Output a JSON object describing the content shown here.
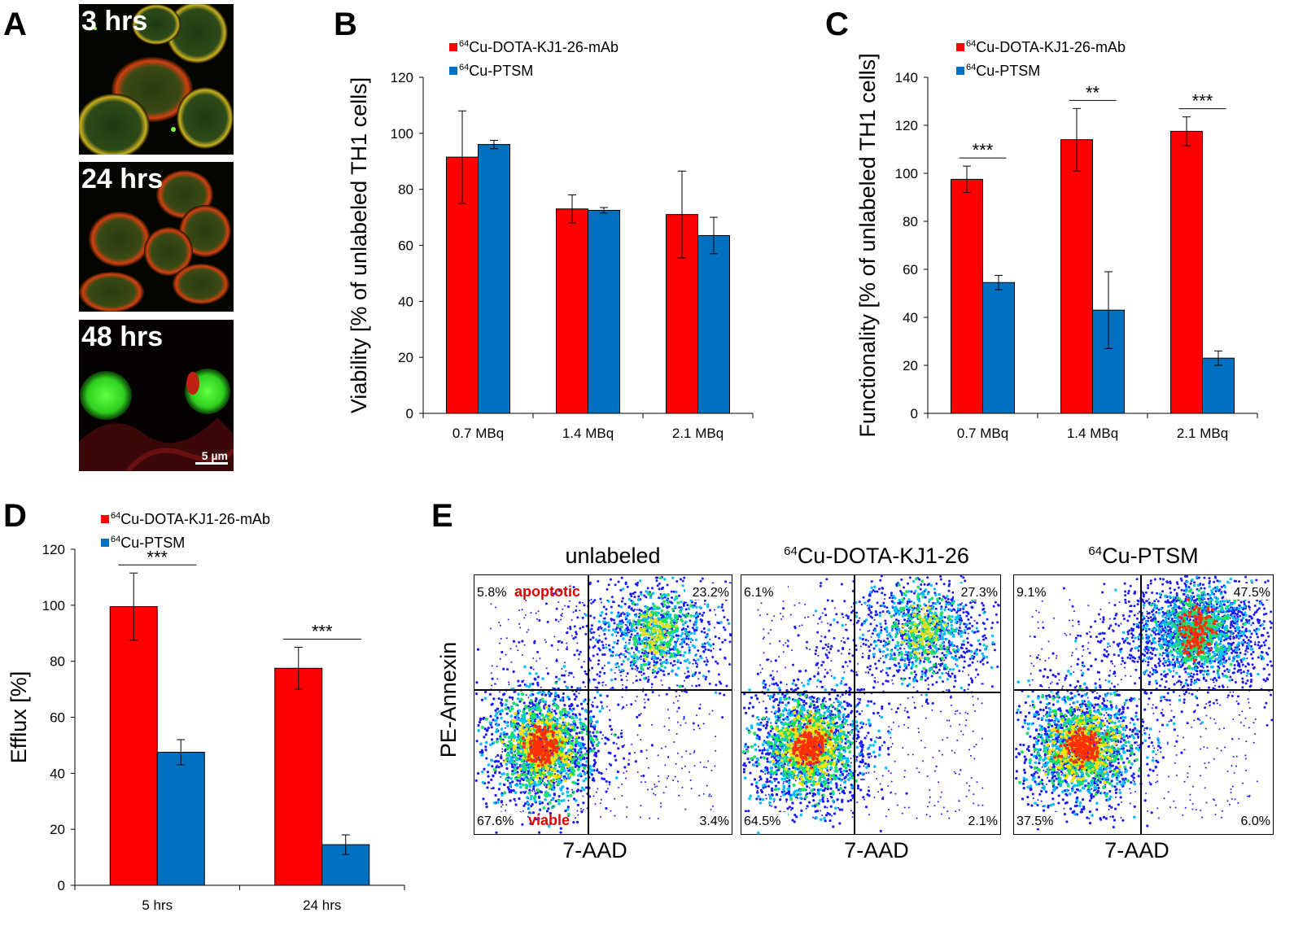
{
  "panels": {
    "A": "A",
    "B": "B",
    "C": "C",
    "D": "D",
    "E": "E"
  },
  "micrographs": [
    {
      "label": "3 hrs"
    },
    {
      "label": "24 hrs"
    },
    {
      "label": "48 hrs",
      "scale_bar": "5 µm"
    }
  ],
  "legend": {
    "mab_sup": "64",
    "mab": "Cu-DOTA-KJ1-26-mAb",
    "ptsm_sup": "64",
    "ptsm": "Cu-PTSM"
  },
  "colors": {
    "mab": "#ff0000",
    "ptsm": "#0070c0"
  },
  "chart_data": [
    {
      "id": "B",
      "type": "bar",
      "title": "",
      "xlabel": "",
      "ylabel": "Viability [% of unlabeled TH1 cells]",
      "categories": [
        "0.7 MBq",
        "1.4 MBq",
        "2.1 MBq"
      ],
      "ylim": [
        0,
        120
      ],
      "yticks": [
        0,
        20,
        40,
        60,
        80,
        100,
        120
      ],
      "series": [
        {
          "name": "64Cu-DOTA-KJ1-26-mAb",
          "values": [
            91.5,
            73,
            71
          ],
          "errors": [
            16.5,
            5,
            15.5
          ]
        },
        {
          "name": "64Cu-PTSM",
          "values": [
            96,
            72.5,
            63.5
          ],
          "errors": [
            1.5,
            1,
            6.5
          ]
        }
      ],
      "significance": [
        "",
        "",
        ""
      ]
    },
    {
      "id": "C",
      "type": "bar",
      "title": "",
      "xlabel": "",
      "ylabel": "Functionality [% of unlabeled TH1 cells]",
      "categories": [
        "0.7 MBq",
        "1.4 MBq",
        "2.1 MBq"
      ],
      "ylim": [
        0,
        140
      ],
      "yticks": [
        0,
        20,
        40,
        60,
        80,
        100,
        120,
        140
      ],
      "series": [
        {
          "name": "64Cu-DOTA-KJ1-26-mAb",
          "values": [
            97.5,
            114,
            117.5
          ],
          "errors": [
            5.5,
            13,
            6
          ]
        },
        {
          "name": "64Cu-PTSM",
          "values": [
            54.5,
            43,
            23
          ],
          "errors": [
            3,
            16,
            3
          ]
        }
      ],
      "significance": [
        "***",
        "**",
        "***"
      ]
    },
    {
      "id": "D",
      "type": "bar",
      "title": "",
      "xlabel": "",
      "ylabel": "Efflux [%]",
      "categories": [
        "5 hrs",
        "24 hrs"
      ],
      "ylim": [
        0,
        120
      ],
      "yticks": [
        0,
        20,
        40,
        60,
        80,
        100,
        120
      ],
      "series": [
        {
          "name": "64Cu-DOTA-KJ1-26-mAb",
          "values": [
            99.5,
            77.5
          ],
          "errors": [
            12,
            7.5
          ]
        },
        {
          "name": "64Cu-PTSM",
          "values": [
            47.5,
            14.5
          ],
          "errors": [
            4.5,
            3.5
          ]
        }
      ],
      "significance": [
        "***",
        "***"
      ]
    },
    {
      "id": "E",
      "type": "scatter",
      "ylabel": "PE-Annexin",
      "xlabel": "7-AAD",
      "plots": [
        {
          "title": "unlabeled",
          "title_sup": "",
          "q_ul": "5.8%",
          "q_ur": "23.2%",
          "q_ll": "67.6%",
          "q_lr": "3.4%",
          "ann_top": "apoptotic",
          "ann_bottom": "viable"
        },
        {
          "title": "Cu-DOTA-KJ1-26",
          "title_sup": "64",
          "q_ul": "6.1%",
          "q_ur": "27.3%",
          "q_ll": "64.5%",
          "q_lr": "2.1%",
          "ann_top": "",
          "ann_bottom": ""
        },
        {
          "title": "Cu-PTSM",
          "title_sup": "64",
          "q_ul": "9.1%",
          "q_ur": "47.5%",
          "q_ll": "37.5%",
          "q_lr": "6.0%",
          "ann_top": "",
          "ann_bottom": ""
        }
      ]
    }
  ]
}
